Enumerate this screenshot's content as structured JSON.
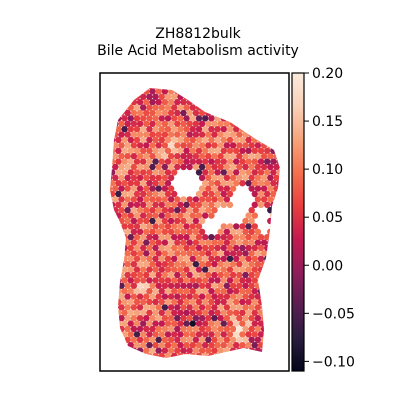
{
  "chart_data": {
    "type": "heatmap",
    "title_lines": [
      "ZH8812bulk",
      "Bile Acid Metabolism activity"
    ],
    "xlabel": "",
    "ylabel": "",
    "colorbar": {
      "colormap": "rocket",
      "vmin": -0.11,
      "vmax": 0.2,
      "ticks": [
        0.2,
        0.15,
        0.1,
        0.05,
        0.0,
        -0.05,
        -0.1
      ],
      "tick_labels": [
        "0.20",
        "0.15",
        "0.10",
        "0.05",
        "0.00",
        "−0.05",
        "−0.10"
      ],
      "colors": [
        "#03051a",
        "#2a1d3f",
        "#5a1e51",
        "#8f1d5a",
        "#c41a50",
        "#e83f3f",
        "#f3714f",
        "#f6a47c",
        "#f9d1b9",
        "#faebdd"
      ]
    },
    "spots": {
      "description": "Hexagonal spatial spot grid over a tissue section",
      "typical_value": 0.08,
      "value_range": [
        -0.11,
        0.2
      ],
      "high_value_regions": "scattered pale patches (e.g. lower right, upper middle)",
      "low_value_regions": "dark purple speckles along edges and lower-middle band"
    }
  }
}
